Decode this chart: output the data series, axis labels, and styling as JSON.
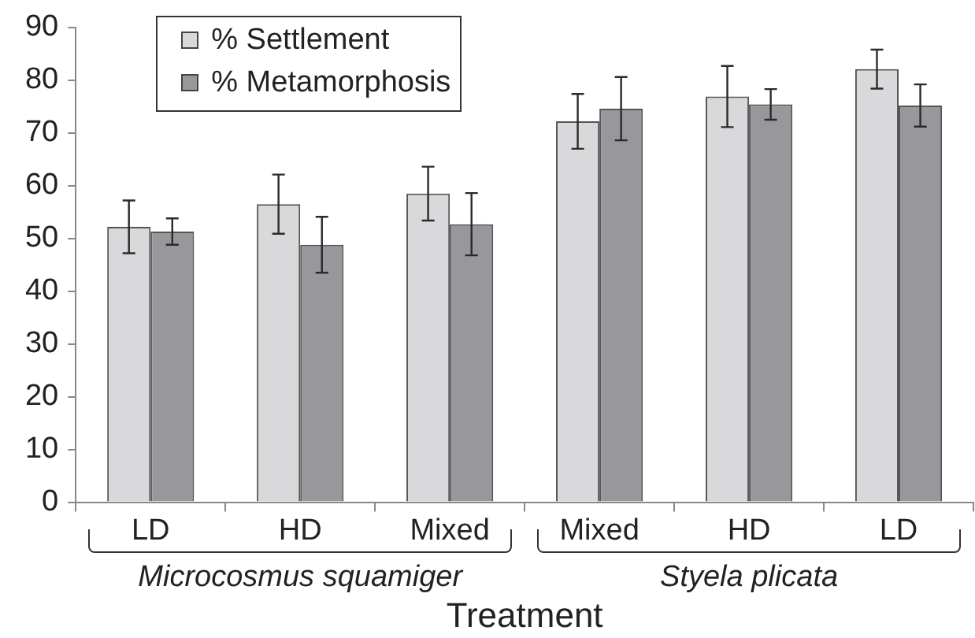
{
  "chart_data": {
    "type": "bar",
    "xlabel": "Treatment",
    "categories": [
      "LD",
      "HD",
      "Mixed",
      "Mixed",
      "HD",
      "LD"
    ],
    "series": [
      {
        "name": "% Settlement",
        "color": "#d9d9db",
        "values": [
          52.2,
          56.5,
          58.5,
          72.2,
          76.9,
          82.1
        ],
        "errors": [
          5.0,
          5.6,
          5.1,
          5.2,
          5.8,
          3.7
        ]
      },
      {
        "name": "% Metamorphosis",
        "color": "#98979c",
        "values": [
          51.3,
          48.8,
          52.7,
          74.6,
          75.4,
          75.2
        ],
        "errors": [
          2.5,
          5.3,
          5.9,
          6.0,
          2.9,
          4.0
        ]
      }
    ],
    "ylim": [
      0,
      90
    ],
    "yticks": [
      0,
      10,
      20,
      30,
      40,
      50,
      60,
      70,
      80,
      90
    ],
    "legend": "top left",
    "annotations": [
      "Microcosmus squamiger",
      "Styela plicata"
    ]
  }
}
